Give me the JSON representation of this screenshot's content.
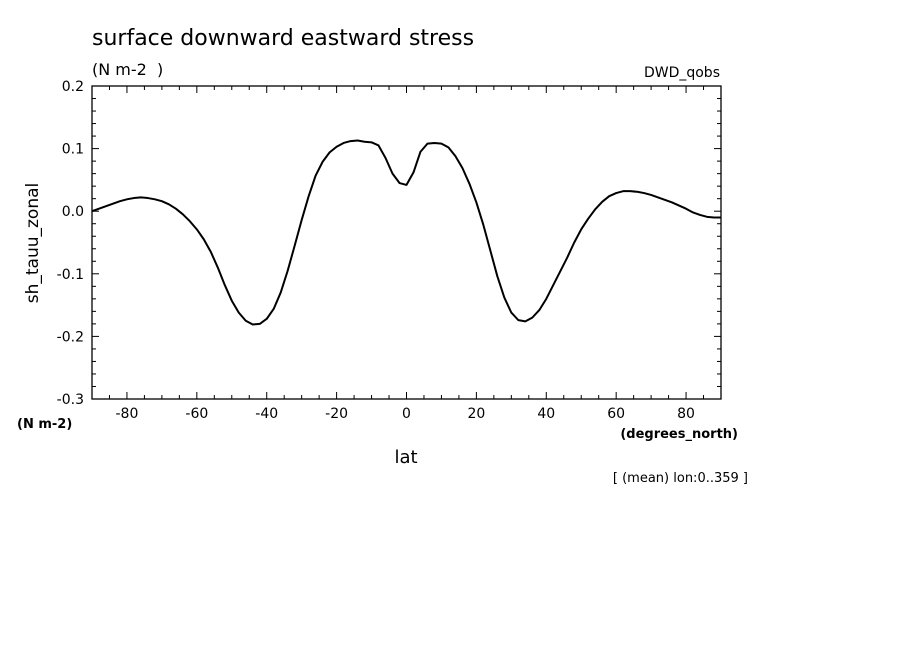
{
  "chart_data": {
    "type": "line",
    "title": "surface downward eastward stress",
    "subtitle": "(N m-2  )",
    "model_label": "DWD_qobs",
    "ylabel": "sh_tauu_zonal",
    "yunits": "(N m-2)",
    "xlabel": "lat",
    "xunits": "(degrees_north)",
    "footnote": "[ (mean) lon:0..359 ]",
    "xlim": [
      -90,
      90
    ],
    "ylim": [
      -0.3,
      0.2
    ],
    "xticks": [
      -80,
      -60,
      -40,
      -20,
      0,
      20,
      40,
      60,
      80
    ],
    "xtick_labels": [
      "-80",
      "-60",
      "-40",
      "-20",
      "0",
      "20",
      "40",
      "60",
      "80"
    ],
    "yticks": [
      -0.3,
      -0.2,
      -0.1,
      0.0,
      0.1,
      0.2
    ],
    "ytick_labels": [
      "-0.3",
      "-0.2",
      "-0.1",
      "0.0",
      "0.1",
      "0.2"
    ],
    "grid": false,
    "line_color": "#000000",
    "series": [
      {
        "x": [
          -90,
          -88,
          -86,
          -84,
          -82,
          -80,
          -78,
          -76,
          -74,
          -72,
          -70,
          -68,
          -66,
          -64,
          -62,
          -60,
          -58,
          -56,
          -54,
          -52,
          -50,
          -48,
          -46,
          -44,
          -42,
          -40,
          -38,
          -36,
          -34,
          -32,
          -30,
          -28,
          -26,
          -24,
          -22,
          -20,
          -18,
          -16,
          -14,
          -12,
          -10,
          -8,
          -6,
          -4,
          -2,
          0,
          2,
          4,
          6,
          8,
          10,
          12,
          14,
          16,
          18,
          20,
          22,
          24,
          26,
          28,
          30,
          32,
          34,
          36,
          38,
          40,
          42,
          44,
          46,
          48,
          50,
          52,
          54,
          56,
          58,
          60,
          62,
          64,
          66,
          68,
          70,
          72,
          74,
          76,
          78,
          80,
          82,
          84,
          86,
          88,
          90
        ],
        "values": [
          0.0,
          0.004,
          0.008,
          0.012,
          0.016,
          0.019,
          0.021,
          0.022,
          0.021,
          0.019,
          0.016,
          0.011,
          0.004,
          -0.005,
          -0.016,
          -0.029,
          -0.045,
          -0.065,
          -0.09,
          -0.118,
          -0.143,
          -0.162,
          -0.175,
          -0.181,
          -0.18,
          -0.172,
          -0.156,
          -0.13,
          -0.095,
          -0.055,
          -0.014,
          0.024,
          0.057,
          0.079,
          0.094,
          0.103,
          0.109,
          0.112,
          0.113,
          0.111,
          0.11,
          0.105,
          0.085,
          0.06,
          0.045,
          0.042,
          0.062,
          0.095,
          0.108,
          0.109,
          0.108,
          0.102,
          0.088,
          0.069,
          0.044,
          0.014,
          -0.022,
          -0.063,
          -0.104,
          -0.138,
          -0.162,
          -0.174,
          -0.176,
          -0.17,
          -0.158,
          -0.14,
          -0.118,
          -0.096,
          -0.074,
          -0.05,
          -0.029,
          -0.012,
          0.003,
          0.015,
          0.024,
          0.029,
          0.032,
          0.032,
          0.031,
          0.029,
          0.026,
          0.022,
          0.018,
          0.014,
          0.009,
          0.004,
          -0.002,
          -0.006,
          -0.009,
          -0.01,
          -0.01
        ]
      }
    ]
  }
}
